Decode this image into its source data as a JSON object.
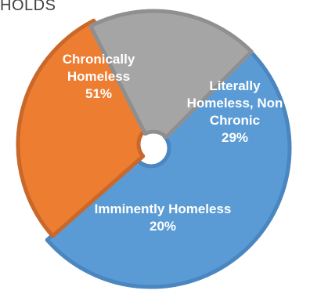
{
  "chart_data": {
    "type": "pie",
    "title": "HOLDS",
    "style": "donut",
    "slices": [
      {
        "name": "Chronically Homeless",
        "value": 51,
        "value_label": "51%",
        "label_lines": [
          "Chronically",
          "Homeless",
          "51%"
        ],
        "color": "#5b9bd5",
        "edge_color": "#4a86bf"
      },
      {
        "name": "Literally Homeless, Non Chronic",
        "value": 29,
        "value_label": "29%",
        "label_lines": [
          "Literally",
          "Homeless, Non",
          "Chronic",
          "29%"
        ],
        "color": "#ed7d31",
        "edge_color": "#c9682a"
      },
      {
        "name": "Imminently Homeless",
        "value": 20,
        "value_label": "20%",
        "label_lines": [
          "Imminently Homeless",
          "20%"
        ],
        "color": "#a5a5a5",
        "edge_color": "#8f8f8f"
      }
    ]
  }
}
